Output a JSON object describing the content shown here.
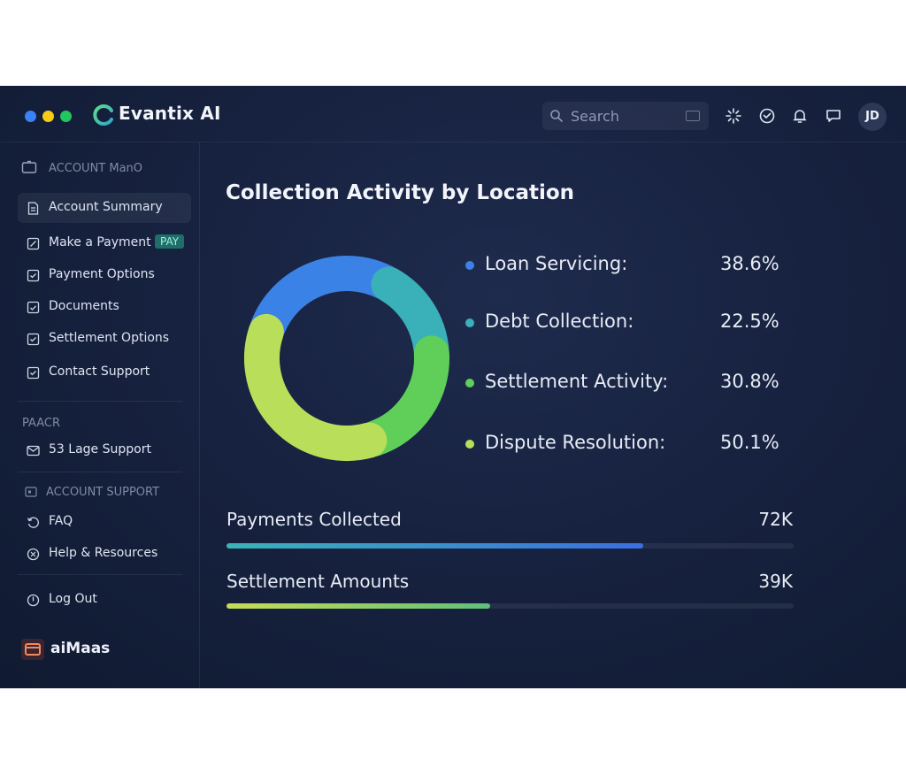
{
  "window": {
    "dots": [
      "#3b82f6",
      "#facc15",
      "#22c55e"
    ]
  },
  "header": {
    "app_title": "Evantix AI",
    "search_placeholder": "Search",
    "avatar_initials": "JD"
  },
  "sidebar": {
    "account_heading": "ACCOUNT ManO",
    "items": [
      {
        "label": "Account Summary",
        "icon": "document-icon"
      },
      {
        "label": "Make a Payment",
        "icon": "edit-icon",
        "badge": "PAY"
      },
      {
        "label": "Payment Options",
        "icon": "checkbox-icon"
      },
      {
        "label": "Documents",
        "icon": "documents-icon"
      },
      {
        "label": "Settlement Options",
        "icon": "checkbox-icon"
      },
      {
        "label": "Contact Support",
        "icon": "checkbox-icon"
      }
    ],
    "section2_heading": "PAACR",
    "section2_items": [
      {
        "label": "53 Lage Support",
        "icon": "mail-icon"
      }
    ],
    "section3_heading": "ACCOUNT SUPPORT",
    "section3_items": [
      {
        "label": "FAQ",
        "icon": "refresh-icon"
      },
      {
        "label": "Help & Resources",
        "icon": "help-icon"
      }
    ],
    "logout_label": "Log Out",
    "brand_label": "aiMaas"
  },
  "main": {
    "title": "Collection Activity by Location",
    "metrics": [
      {
        "label": "Payments Collected",
        "value": "72K",
        "progress": 0.735,
        "colors": [
          "#3ab3b8",
          "#3a6fe0"
        ]
      },
      {
        "label": "Settlement Amounts",
        "value": "39K",
        "progress": 0.465,
        "colors": [
          "#c8dc55",
          "#5fc07a"
        ]
      }
    ]
  },
  "chart_data": {
    "type": "pie",
    "title": "Collection Activity by Location",
    "categories": [
      "Loan Servicing:",
      "Debt Collection:",
      "Settlement Activity:",
      "Dispute Resolution:"
    ],
    "labels": [
      "38.6%",
      "22.5%",
      "30.8%",
      "50.1%"
    ],
    "values": [
      38.6,
      22.5,
      30.8,
      50.1
    ],
    "colors": [
      "#3b82e6",
      "#3ab0b8",
      "#5fcf5a",
      "#b9df5a"
    ],
    "legend": "right"
  }
}
